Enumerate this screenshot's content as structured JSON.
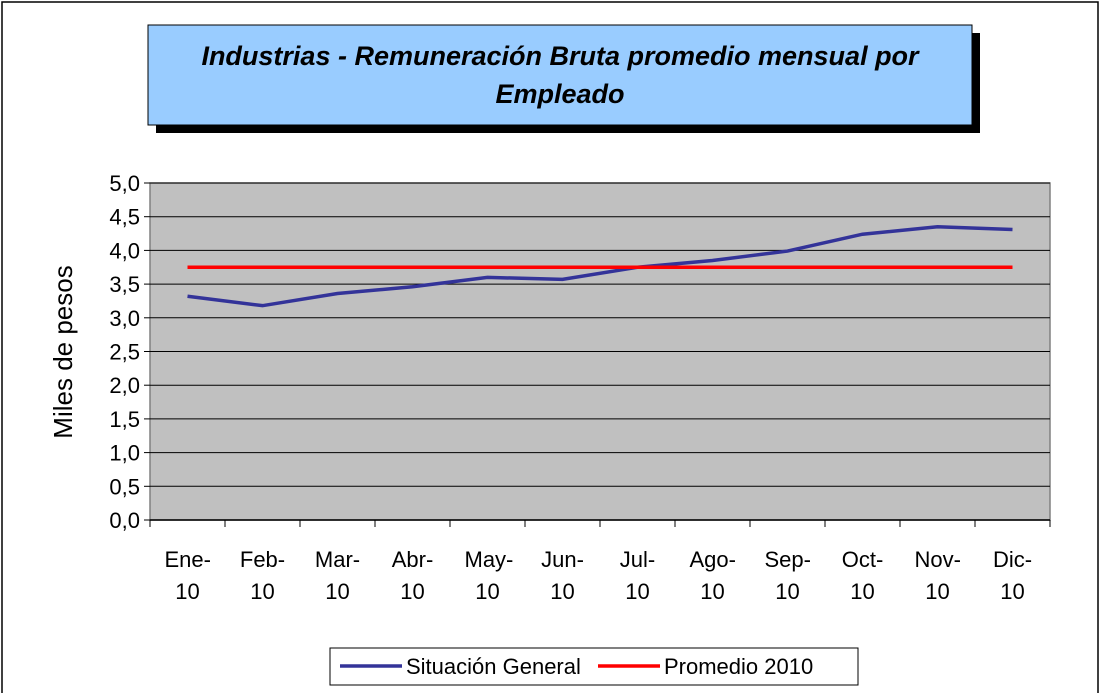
{
  "chart_data": {
    "type": "line",
    "title": "Industrias - Remuneración Bruta promedio mensual por Empleado",
    "y_label": "Miles de pesos",
    "categories": [
      "Ene-10",
      "Feb-10",
      "Mar-10",
      "Abr-10",
      "May-10",
      "Jun-10",
      "Jul-10",
      "Ago-10",
      "Sep-10",
      "Oct-10",
      "Nov-10",
      "Dic-10"
    ],
    "series": [
      {
        "name": "Situación General",
        "color": "#333399",
        "values": [
          3.32,
          3.18,
          3.36,
          3.46,
          3.6,
          3.57,
          3.75,
          3.85,
          3.99,
          4.24,
          4.35,
          4.31
        ]
      },
      {
        "name": "Promedio 2010",
        "color": "#ff0000",
        "values": [
          3.75,
          3.75,
          3.75,
          3.75,
          3.75,
          3.75,
          3.75,
          3.75,
          3.75,
          3.75,
          3.75,
          3.75
        ]
      }
    ],
    "ylim": [
      0,
      5
    ],
    "yticks": [
      {
        "value": 0,
        "label": "0,0"
      },
      {
        "value": 0.5,
        "label": "0,5"
      },
      {
        "value": 1,
        "label": "1,0"
      },
      {
        "value": 1.5,
        "label": "1,5"
      },
      {
        "value": 2,
        "label": "2,0"
      },
      {
        "value": 2.5,
        "label": "2,5"
      },
      {
        "value": 3,
        "label": "3,0"
      },
      {
        "value": 3.5,
        "label": "3,5"
      },
      {
        "value": 4,
        "label": "4,0"
      },
      {
        "value": 4.5,
        "label": "4,5"
      },
      {
        "value": 5,
        "label": "5,0"
      }
    ],
    "grid": true,
    "legend": "bottom"
  }
}
